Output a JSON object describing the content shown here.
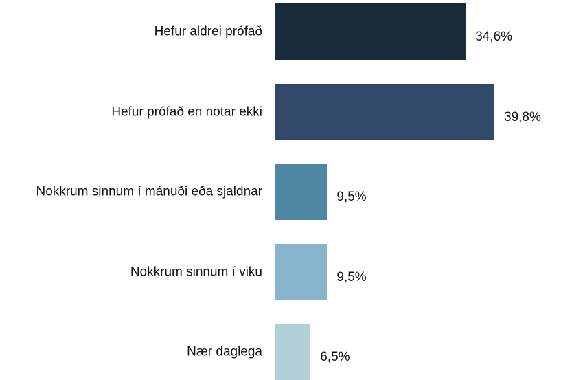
{
  "chart_data": {
    "type": "bar",
    "orientation": "horizontal",
    "categories": [
      "Hefur aldrei prófað",
      "Hefur prófað en notar ekki",
      "Nokkrum sinnum í mánuði eða sjaldnar",
      "Nokkrum sinnum í viku",
      "Nær daglega"
    ],
    "values": [
      34.6,
      39.8,
      9.5,
      9.5,
      6.5
    ],
    "value_labels": [
      "34,6%",
      "39,8%",
      "9,5%",
      "9,5%",
      "6,5%"
    ],
    "colors": [
      "#192a3b",
      "#324868",
      "#4f87a3",
      "#88b5cb",
      "#b1d1d9"
    ]
  }
}
